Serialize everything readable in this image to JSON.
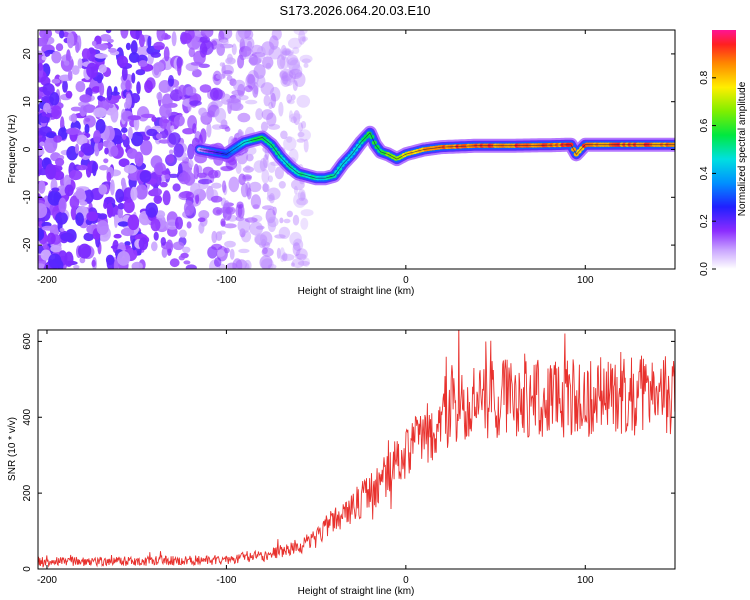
{
  "title": "S173.2026.064.20.03.E10",
  "chart_data": [
    {
      "type": "heatmap",
      "name": "spectrogram",
      "xlabel": "Height of straight line (km)",
      "ylabel": "Frequency (Hz)",
      "xlim": [
        -205,
        150
      ],
      "ylim": [
        -25,
        25
      ],
      "xticks": [
        -200,
        -100,
        0,
        100
      ],
      "yticks": [
        20,
        10,
        0,
        -10,
        -20
      ],
      "colorbar": {
        "label": "Normalized spectral amplitude",
        "range": [
          0.0,
          1.0
        ],
        "ticks": [
          0.0,
          0.2,
          0.4,
          0.6,
          0.8
        ]
      },
      "ridge": {
        "x": [
          -115,
          -100,
          -90,
          -80,
          -75,
          -70,
          -65,
          -60,
          -55,
          -50,
          -45,
          -40,
          -35,
          -30,
          -25,
          -20,
          -17,
          -14,
          -10,
          -5,
          0,
          10,
          20,
          40,
          60,
          80,
          92,
          95,
          100,
          120,
          150
        ],
        "frequency": [
          0.0,
          -1.0,
          1.5,
          2.5,
          1.0,
          -1.5,
          -3.5,
          -5.0,
          -5.5,
          -6.0,
          -6.0,
          -5.5,
          -3.0,
          -1.0,
          1.5,
          3.5,
          1.0,
          -0.5,
          -1.0,
          -2.0,
          -1.0,
          0.0,
          0.5,
          0.8,
          0.8,
          0.9,
          1.0,
          -1.0,
          1.0,
          1.0,
          1.0
        ],
        "amplitude": [
          0.1,
          0.3,
          0.5,
          0.6,
          0.55,
          0.5,
          0.5,
          0.55,
          0.55,
          0.5,
          0.5,
          0.55,
          0.5,
          0.5,
          0.55,
          0.6,
          0.6,
          0.6,
          0.7,
          0.75,
          0.8,
          0.85,
          0.95,
          0.95,
          0.95,
          0.95,
          0.95,
          0.85,
          0.95,
          0.95,
          0.95
        ]
      },
      "noise_region": [
        -205,
        -90
      ]
    },
    {
      "type": "line",
      "name": "snr",
      "xlabel": "Height of straight line (km)",
      "ylabel": "SNR (10 * v/v)",
      "xlim": [
        -205,
        150
      ],
      "ylim": [
        0,
        630
      ],
      "xticks": [
        -200,
        -100,
        0,
        100
      ],
      "yticks": [
        0,
        200,
        400,
        600
      ],
      "color": "#e8312d",
      "envelope": {
        "x": [
          -205,
          -150,
          -100,
          -90,
          -80,
          -70,
          -60,
          -50,
          -45,
          -40,
          -35,
          -30,
          -25,
          -20,
          -10,
          0,
          10,
          20,
          30,
          40,
          60,
          80,
          100,
          120,
          150
        ],
        "y": [
          20,
          20,
          25,
          30,
          35,
          45,
          60,
          80,
          110,
          130,
          150,
          160,
          180,
          200,
          250,
          300,
          350,
          400,
          430,
          440,
          450,
          450,
          450,
          460,
          460
        ]
      }
    }
  ]
}
